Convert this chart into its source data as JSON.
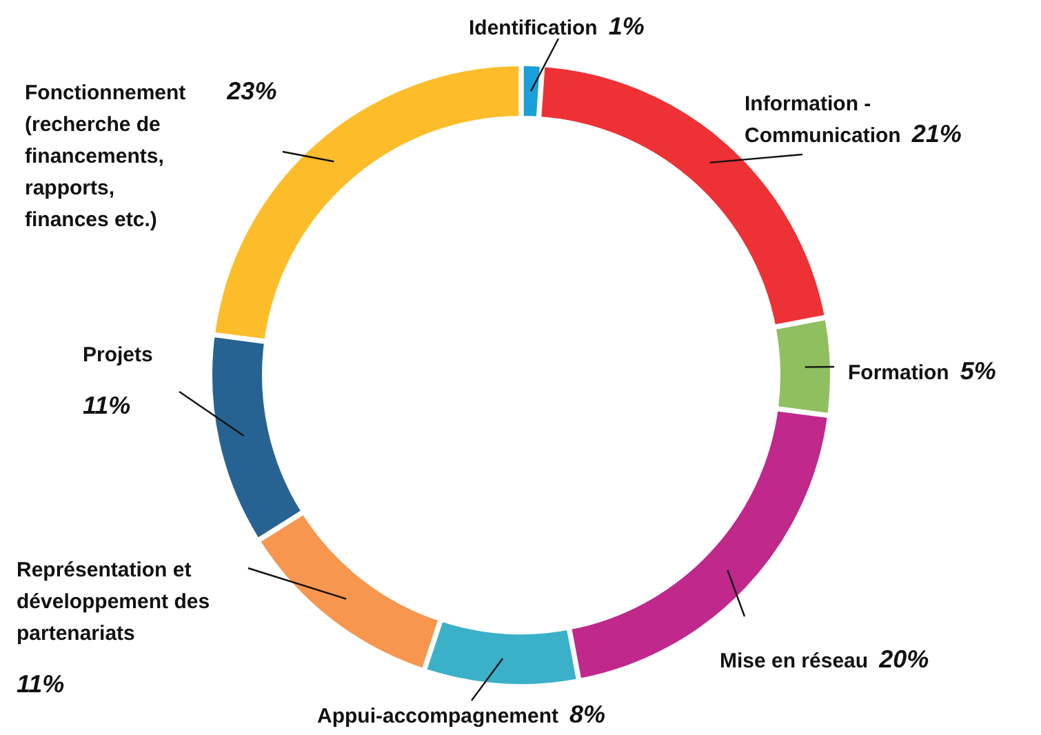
{
  "chart_data": {
    "type": "donut",
    "categories": [
      "Identification",
      "Information - Communication",
      "Formation",
      "Mise en réseau",
      "Appui-accompagnement",
      "Représentation et développement des partenariats",
      "Projets",
      "Fonctionnement (recherche de financements, rapports, finances etc.)"
    ],
    "values": [
      1,
      21,
      5,
      20,
      8,
      11,
      11,
      23
    ],
    "value_labels": [
      "1%",
      "21%",
      "5%",
      "20%",
      "8%",
      "11%",
      "11%",
      "23%"
    ],
    "colors": [
      "#1a9fd9",
      "#ee3135",
      "#8fbf5f",
      "#c0288c",
      "#3bb0c9",
      "#f7964f",
      "#266393",
      "#fdbd2a"
    ]
  }
}
